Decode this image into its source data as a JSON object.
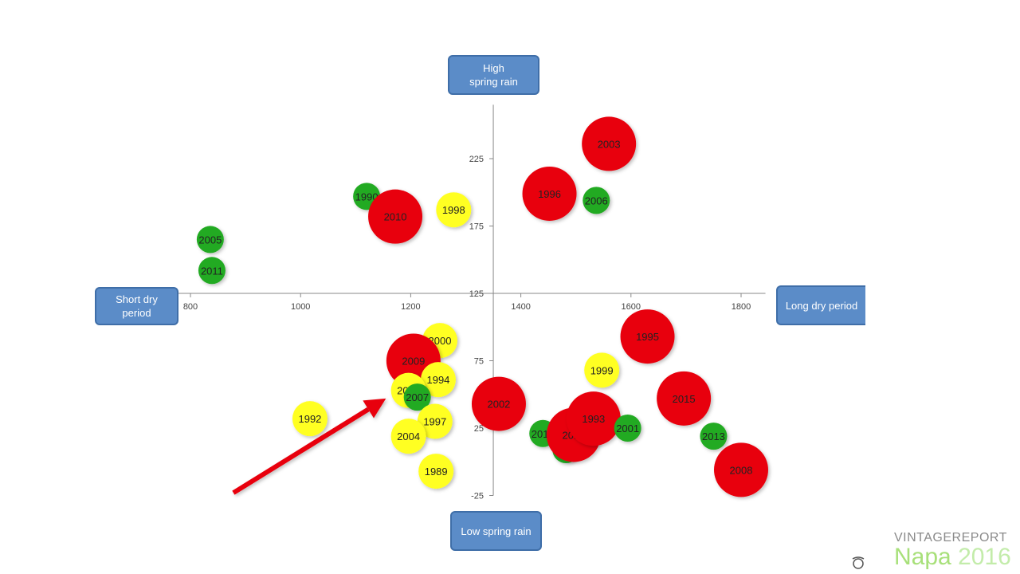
{
  "chart_data": {
    "type": "scatter",
    "subtype": "bubble",
    "x_ticks": [
      800,
      1000,
      1200,
      1400,
      1600,
      1800
    ],
    "y_ticks": [
      -25,
      25,
      75,
      125,
      175,
      225
    ],
    "xlim": [
      750,
      1850
    ],
    "ylim": [
      -25,
      265
    ],
    "axis_cross": {
      "x": 1350,
      "y": 125
    },
    "colors": {
      "red": "#e8000b",
      "yellow": "#ffff22",
      "green": "#22aa22"
    },
    "points": [
      {
        "label": "1990",
        "x": 1120,
        "y": 197,
        "color": "green",
        "size": "small"
      },
      {
        "label": "2010",
        "x": 1172,
        "y": 182,
        "color": "red",
        "size": "large"
      },
      {
        "label": "1998",
        "x": 1278,
        "y": 187,
        "color": "yellow",
        "size": "medium"
      },
      {
        "label": "2005",
        "x": 836,
        "y": 165,
        "color": "green",
        "size": "small"
      },
      {
        "label": "2011",
        "x": 839,
        "y": 142,
        "color": "green",
        "size": "small"
      },
      {
        "label": "2003",
        "x": 1560,
        "y": 236,
        "color": "red",
        "size": "large"
      },
      {
        "label": "1996",
        "x": 1452,
        "y": 199,
        "color": "red",
        "size": "large"
      },
      {
        "label": "2006",
        "x": 1537,
        "y": 194,
        "color": "green",
        "size": "small"
      },
      {
        "label": "2000",
        "x": 1253,
        "y": 90,
        "color": "yellow",
        "size": "medium"
      },
      {
        "label": "2009",
        "x": 1205,
        "y": 75,
        "color": "red",
        "size": "large"
      },
      {
        "label": "1994",
        "x": 1250,
        "y": 61,
        "color": "yellow",
        "size": "medium"
      },
      {
        "label": "2016",
        "x": 1196,
        "y": 53,
        "color": "yellow",
        "size": "medium"
      },
      {
        "label": "2007",
        "x": 1212,
        "y": 48,
        "color": "green",
        "size": "small"
      },
      {
        "label": "1992",
        "x": 1017,
        "y": 32,
        "color": "yellow",
        "size": "medium"
      },
      {
        "label": "1997",
        "x": 1244,
        "y": 30,
        "color": "yellow",
        "size": "medium"
      },
      {
        "label": "2004",
        "x": 1196,
        "y": 19,
        "color": "yellow",
        "size": "medium"
      },
      {
        "label": "1989",
        "x": 1246,
        "y": -7,
        "color": "yellow",
        "size": "medium"
      },
      {
        "label": "2002",
        "x": 1360,
        "y": 43,
        "color": "red",
        "size": "large"
      },
      {
        "label": "1995",
        "x": 1630,
        "y": 93,
        "color": "red",
        "size": "large"
      },
      {
        "label": "1999",
        "x": 1547,
        "y": 68,
        "color": "yellow",
        "size": "medium"
      },
      {
        "label": "2015",
        "x": 1696,
        "y": 47,
        "color": "red",
        "size": "large"
      },
      {
        "label": "2012",
        "x": 1440,
        "y": 21,
        "color": "green",
        "size": "small"
      },
      {
        "label": "1991",
        "x": 1482,
        "y": 9,
        "color": "green",
        "size": "small"
      },
      {
        "label": "2014",
        "x": 1496,
        "y": 20,
        "color": "red",
        "size": "large"
      },
      {
        "label": "1993",
        "x": 1532,
        "y": 32,
        "color": "red",
        "size": "large"
      },
      {
        "label": "2001",
        "x": 1594,
        "y": 25,
        "color": "green",
        "size": "small"
      },
      {
        "label": "2013",
        "x": 1750,
        "y": 19,
        "color": "green",
        "size": "small"
      },
      {
        "label": "2008",
        "x": 1800,
        "y": -6,
        "color": "red",
        "size": "large"
      }
    ],
    "annotations": [
      {
        "type": "arrow",
        "color": "#e8000b",
        "from": {
          "x": 878,
          "y": -23
        },
        "to": {
          "x": 1155,
          "y": 47
        }
      }
    ]
  },
  "quadrant_labels": {
    "top": "High\nspring rain",
    "bottom": "Low spring rain",
    "left": "Short dry\nperiod",
    "right": "Long dry period"
  },
  "brand": {
    "line1_a": "VINTAGE",
    "line1_b": "REPORT",
    "line2_a": "Napa",
    "line2_b": "2016"
  },
  "icons": {
    "logo": "camera-lens-icon"
  }
}
